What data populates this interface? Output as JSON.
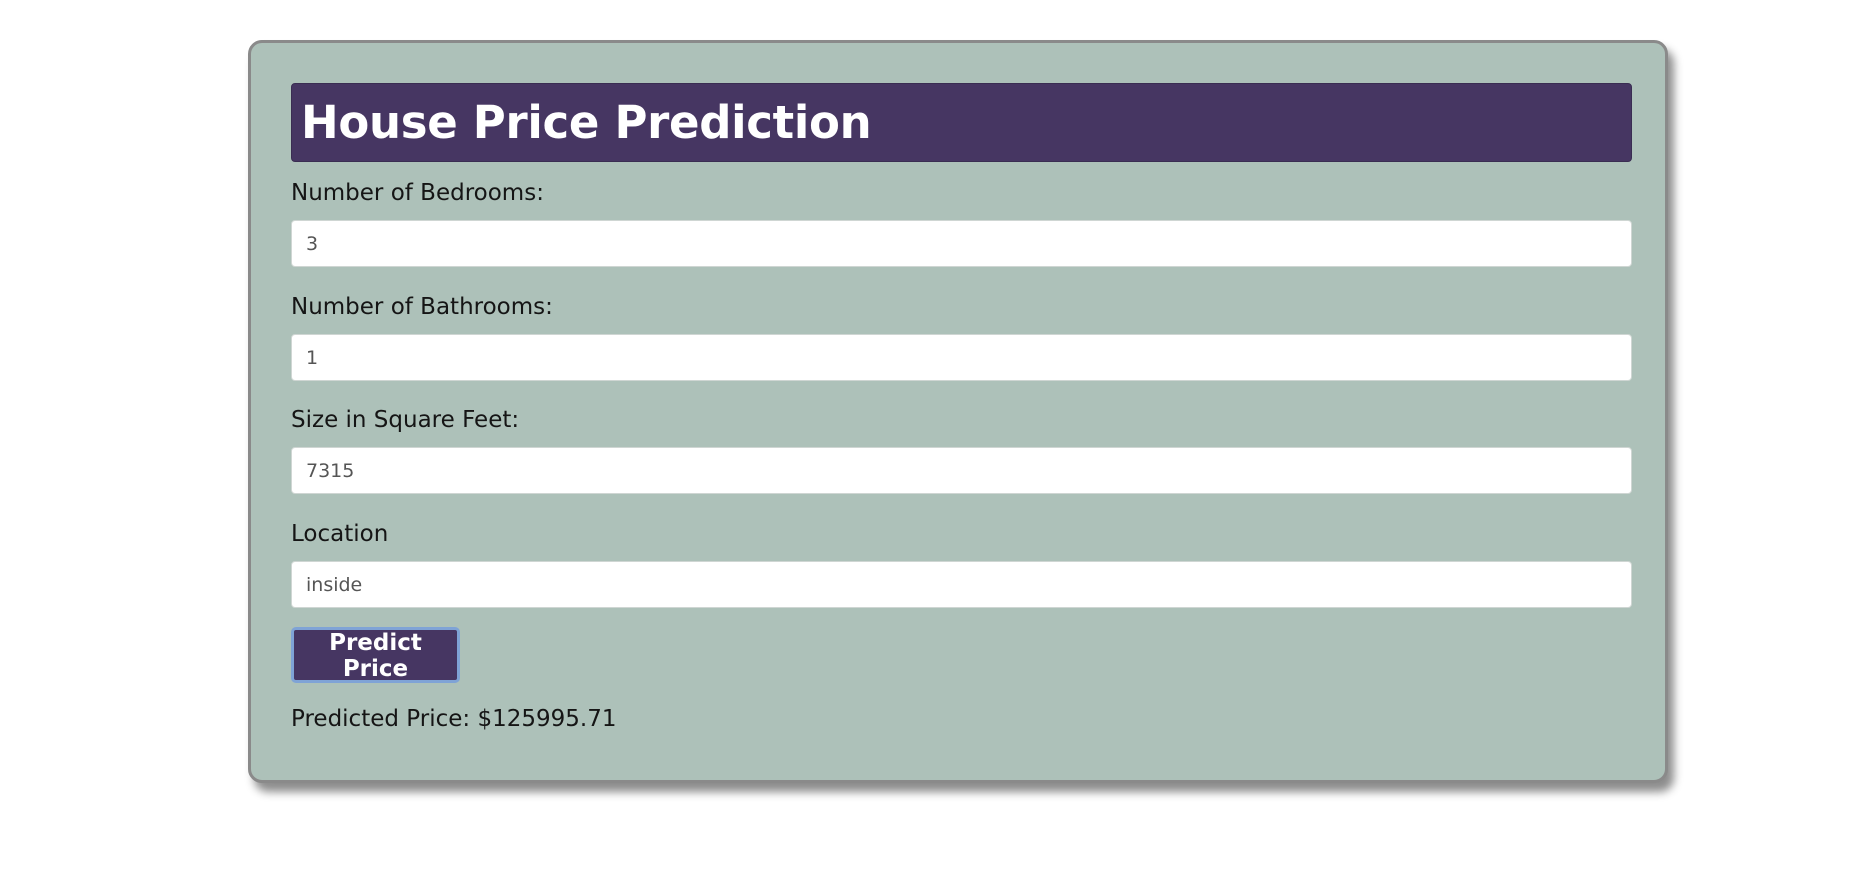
{
  "app": {
    "title": "House Price Prediction"
  },
  "form": {
    "bedrooms": {
      "label": "Number of Bedrooms:",
      "value": "3"
    },
    "bathrooms": {
      "label": "Number of Bathrooms:",
      "value": "1"
    },
    "size": {
      "label": "Size in Square Feet:",
      "value": "7315"
    },
    "location": {
      "label": "Location",
      "value": "inside"
    },
    "submit_label": "Predict Price"
  },
  "result": {
    "text": "Predicted Price: $125995.71"
  },
  "colors": {
    "card_background": "#adc1b9",
    "header_background": "#463662",
    "button_background": "#463662",
    "button_focus_ring": "#7fa3d6",
    "page_background": "#ffffff"
  }
}
